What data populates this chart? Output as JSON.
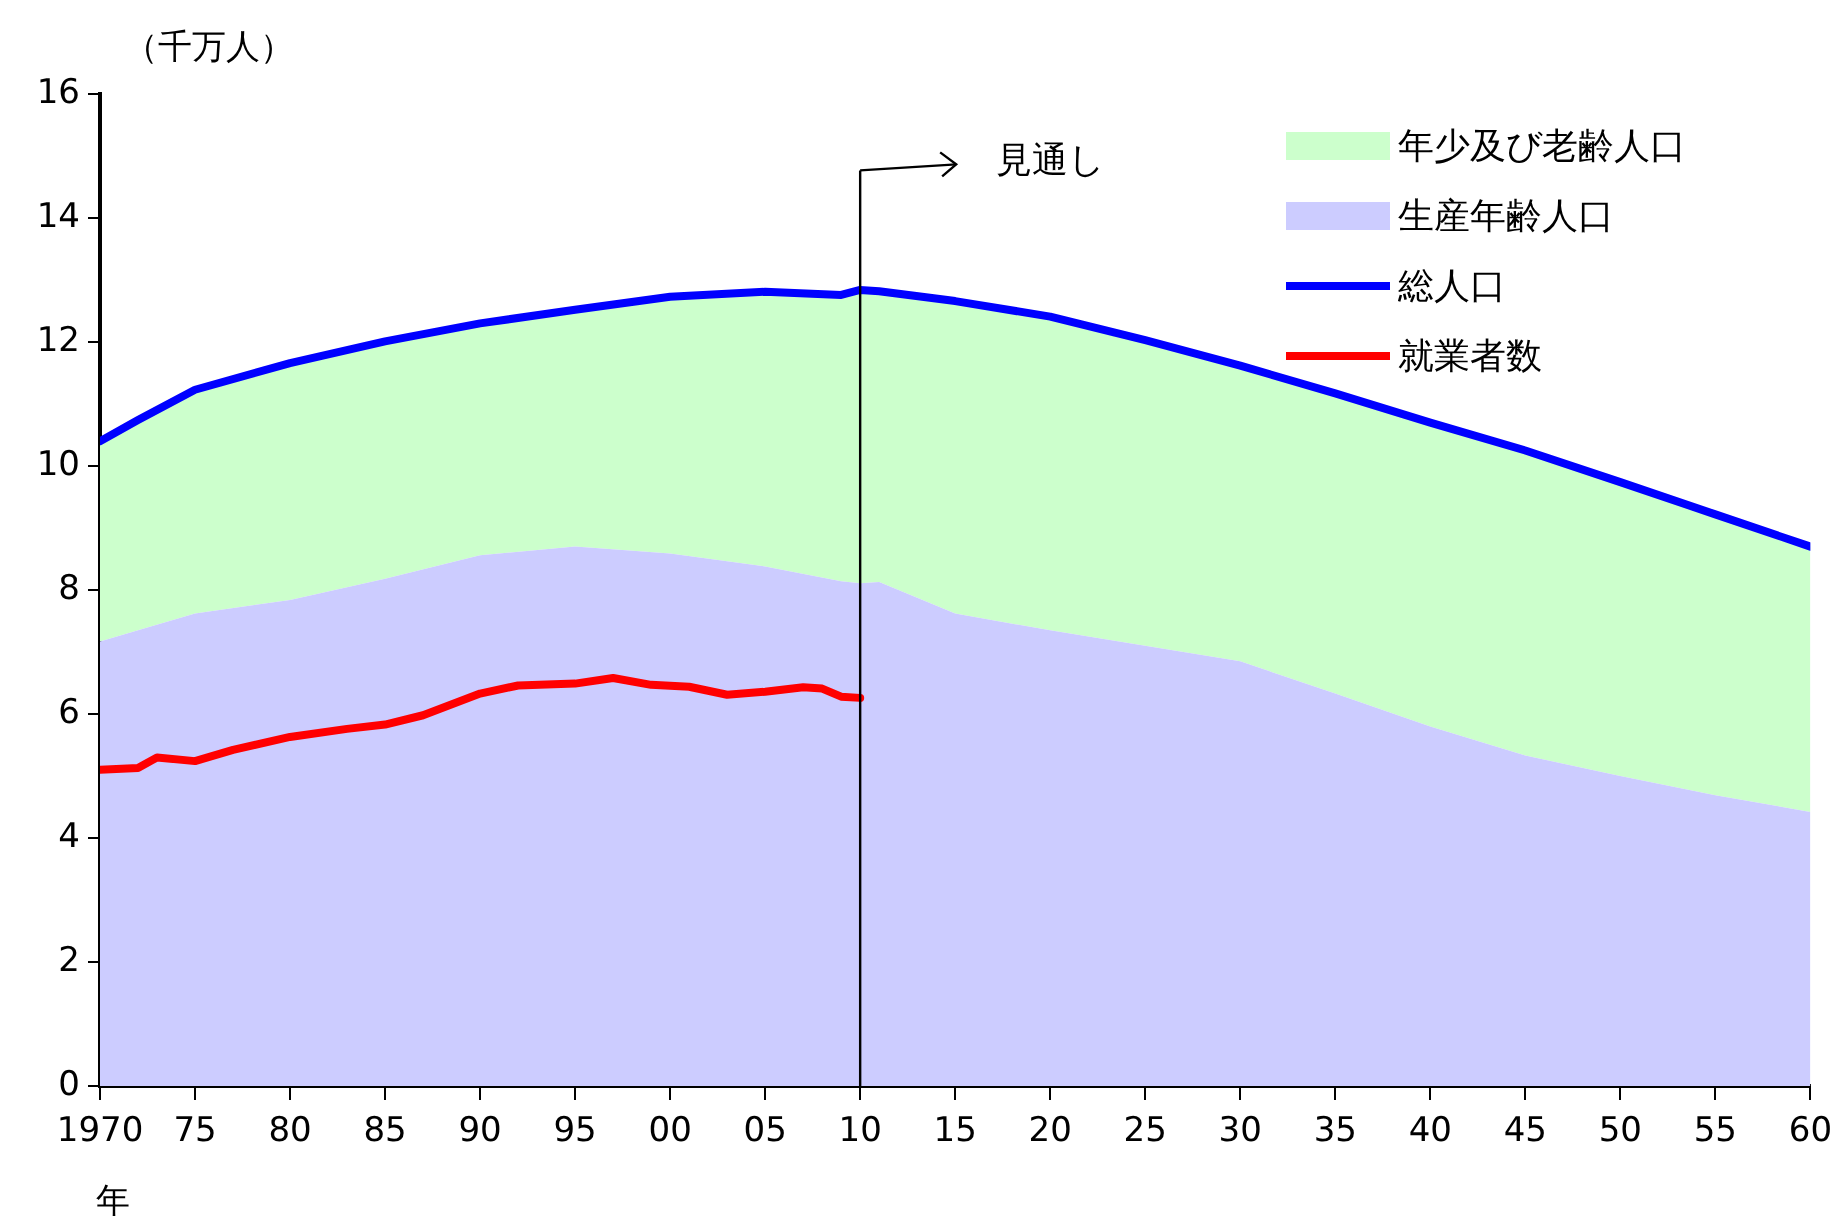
{
  "chart_data": {
    "type": "area",
    "ylabel": "（千万人）",
    "xlabel": "年",
    "stacked": true,
    "legend": "top right",
    "marker": "none",
    "line_style": "solid",
    "grid": false,
    "x": [
      1970,
      1972,
      1975,
      1980,
      1985,
      1990,
      1995,
      2000,
      2005,
      2009,
      2010,
      2011,
      2015,
      2020,
      2025,
      2030,
      2035,
      2040,
      2045,
      2050,
      2055,
      2060
    ],
    "xlim": [
      1970,
      2060
    ],
    "xticks": [
      {
        "value": 1970,
        "label": "1970"
      },
      {
        "value": 1975,
        "label": "75"
      },
      {
        "value": 1980,
        "label": "80"
      },
      {
        "value": 1985,
        "label": "85"
      },
      {
        "value": 1990,
        "label": "90"
      },
      {
        "value": 1995,
        "label": "95"
      },
      {
        "value": 2000,
        "label": "00"
      },
      {
        "value": 2005,
        "label": "05"
      },
      {
        "value": 2010,
        "label": "10"
      },
      {
        "value": 2015,
        "label": "15"
      },
      {
        "value": 2020,
        "label": "20"
      },
      {
        "value": 2025,
        "label": "25"
      },
      {
        "value": 2030,
        "label": "30"
      },
      {
        "value": 2035,
        "label": "35"
      },
      {
        "value": 2040,
        "label": "40"
      },
      {
        "value": 2045,
        "label": "45"
      },
      {
        "value": 2050,
        "label": "50"
      },
      {
        "value": 2055,
        "label": "55"
      },
      {
        "value": 2060,
        "label": "60"
      }
    ],
    "ylim": [
      0,
      16
    ],
    "yticks": [
      0,
      2,
      4,
      6,
      8,
      10,
      12,
      14,
      16
    ],
    "series": [
      {
        "name": "生産年齢人口",
        "type": "area",
        "color": "#ccccff",
        "values": [
          7.17,
          7.35,
          7.62,
          7.84,
          8.18,
          8.56,
          8.7,
          8.59,
          8.38,
          8.14,
          8.11,
          8.13,
          7.62,
          7.35,
          7.1,
          6.85,
          6.33,
          5.8,
          5.33,
          5.0,
          4.69,
          4.42
        ]
      },
      {
        "name": "年少及び老齢人口",
        "type": "area",
        "color": "#ccffcc",
        "values": [
          3.23,
          3.39,
          3.61,
          3.82,
          3.83,
          3.74,
          3.82,
          4.14,
          4.43,
          4.62,
          4.73,
          4.69,
          5.04,
          5.06,
          4.93,
          4.77,
          4.84,
          4.9,
          4.92,
          4.74,
          4.53,
          4.28
        ]
      },
      {
        "name": "総人口",
        "type": "line",
        "color": "#0000ff",
        "values": [
          10.4,
          10.74,
          11.23,
          11.66,
          12.01,
          12.3,
          12.52,
          12.73,
          12.81,
          12.76,
          12.84,
          12.82,
          12.66,
          12.41,
          12.03,
          11.62,
          11.17,
          10.7,
          10.25,
          9.74,
          9.22,
          8.7
        ]
      },
      {
        "name": "就業者数",
        "type": "line",
        "color": "#ff0000",
        "x": [
          1970,
          1972,
          1973,
          1975,
          1977,
          1980,
          1983,
          1985,
          1987,
          1990,
          1992,
          1995,
          1997,
          1999,
          2001,
          2003,
          2005,
          2007,
          2008,
          2009,
          2010
        ],
        "values": [
          5.1,
          5.13,
          5.3,
          5.24,
          5.42,
          5.63,
          5.76,
          5.83,
          5.98,
          6.33,
          6.46,
          6.49,
          6.58,
          6.47,
          6.44,
          6.31,
          6.36,
          6.43,
          6.41,
          6.28,
          6.26
        ]
      }
    ],
    "ref_lines": [
      {
        "axis": "x",
        "value": 2010,
        "label": "見通し"
      }
    ]
  }
}
